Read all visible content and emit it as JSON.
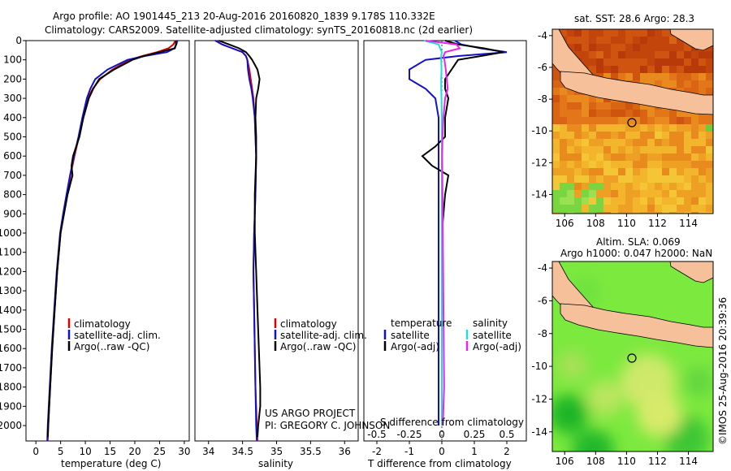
{
  "header": {
    "line1": "Argo profile: AO 1901445_213 20-Aug-2016 20160820_1839 9.178S 110.332E",
    "line2": "Climatology: CARS2009. Satellite-adjusted climatology: synTS_20160818.nc (2d earlier)"
  },
  "footer": {
    "project": "US ARGO PROJECT",
    "pi": "PI: GREGORY C. JOHNSON",
    "copyright": "©IMOS 25-Aug-2016 20:39:36"
  },
  "colors": {
    "climatology": "#dd0000",
    "satellite": "#1111cc",
    "argo": "#000000",
    "sat_t_diff": "#22dddd",
    "argo_s_diff": "#ee22ee",
    "land": "#f5c09a"
  },
  "chart_data": [
    {
      "type": "line",
      "panel": "temperature",
      "xlabel": "temperature (deg C)",
      "ylabel": "",
      "xlim": [
        -2,
        31
      ],
      "ylim": [
        2080,
        0
      ],
      "xticks": [
        0,
        5,
        10,
        15,
        20,
        25,
        30
      ],
      "yticks": [
        0,
        100,
        200,
        300,
        400,
        500,
        600,
        700,
        800,
        900,
        1000,
        1100,
        1200,
        1300,
        1400,
        1500,
        1600,
        1700,
        1800,
        1900,
        2000
      ],
      "legend": [
        "climatology",
        "satellite-adj. clim.",
        "Argo(..raw -QC)"
      ],
      "series": [
        {
          "name": "climatology",
          "color": "#dd0000",
          "depth": [
            0,
            20,
            40,
            60,
            80,
            100,
            150,
            200,
            250,
            300,
            400,
            500,
            600,
            700,
            800,
            900,
            1000,
            1200,
            1400,
            1600,
            1800,
            2000,
            2080
          ],
          "values": [
            28.2,
            27.8,
            26.8,
            24.5,
            21.5,
            19.0,
            15.5,
            13.0,
            11.5,
            10.5,
            9.5,
            8.7,
            7.8,
            7.0,
            6.3,
            5.6,
            5.0,
            4.3,
            3.8,
            3.3,
            2.9,
            2.5,
            2.4
          ]
        },
        {
          "name": "satellite-adj. clim.",
          "color": "#1111cc",
          "depth": [
            0,
            20,
            40,
            60,
            80,
            100,
            150,
            200,
            250,
            300,
            400,
            500,
            600,
            700,
            800,
            900,
            1000,
            1200,
            1400,
            1600,
            1800,
            2000,
            2080
          ],
          "values": [
            28.6,
            28.4,
            28.0,
            26.5,
            22.0,
            18.5,
            14.5,
            12.0,
            11.0,
            10.3,
            9.4,
            8.6,
            7.7,
            6.9,
            6.2,
            5.5,
            4.9,
            4.2,
            3.7,
            3.2,
            2.8,
            2.4,
            2.3
          ]
        },
        {
          "name": "Argo(..raw -QC)",
          "color": "#000000",
          "depth": [
            0,
            20,
            40,
            60,
            80,
            100,
            150,
            200,
            250,
            300,
            400,
            500,
            600,
            650,
            700,
            800,
            900,
            1000,
            1200,
            1400,
            1600,
            1800,
            2000,
            2060
          ],
          "values": [
            28.3,
            28.3,
            28.1,
            25.0,
            21.8,
            19.5,
            15.8,
            12.8,
            11.6,
            10.7,
            9.6,
            8.8,
            7.5,
            7.2,
            7.4,
            6.4,
            5.7,
            5.0,
            4.3,
            3.8,
            3.3,
            2.9,
            2.5,
            2.4
          ]
        }
      ]
    },
    {
      "type": "line",
      "panel": "salinity",
      "xlabel": "salinity",
      "xlim": [
        33.8,
        36.2
      ],
      "ylim": [
        2080,
        0
      ],
      "xticks": [
        34,
        34.5,
        35,
        35.5,
        36
      ],
      "legend": [
        "climatology",
        "satellite-adj. clim.",
        "Argo(..raw -QC)"
      ],
      "series": [
        {
          "name": "climatology",
          "color": "#dd0000",
          "depth": [
            0,
            20,
            40,
            60,
            80,
            100,
            150,
            200,
            250,
            300,
            400,
            500,
            600,
            800,
            1000,
            1200,
            1400,
            1600,
            1800,
            2000,
            2080
          ],
          "values": [
            34.1,
            34.2,
            34.35,
            34.5,
            34.55,
            34.57,
            34.6,
            34.62,
            34.64,
            34.66,
            34.68,
            34.69,
            34.7,
            34.69,
            34.67,
            34.66,
            34.67,
            34.68,
            34.69,
            34.71,
            34.72
          ]
        },
        {
          "name": "satellite-adj. clim.",
          "color": "#1111cc",
          "depth": [
            0,
            20,
            40,
            60,
            80,
            100,
            150,
            200,
            250,
            300,
            400,
            500,
            600,
            800,
            1000,
            1200,
            1400,
            1600,
            1800,
            2000,
            2080
          ],
          "values": [
            34.1,
            34.2,
            34.35,
            34.5,
            34.55,
            34.57,
            34.58,
            34.6,
            34.63,
            34.65,
            34.68,
            34.69,
            34.7,
            34.69,
            34.67,
            34.66,
            34.67,
            34.68,
            34.69,
            34.7,
            34.71
          ]
        },
        {
          "name": "Argo(..raw -QC)",
          "color": "#000000",
          "depth": [
            0,
            20,
            40,
            60,
            80,
            100,
            150,
            200,
            250,
            300,
            400,
            500,
            600,
            800,
            1000,
            1200,
            1400,
            1600,
            1800,
            1900,
            2000,
            2060
          ],
          "values": [
            34.15,
            34.3,
            34.45,
            34.55,
            34.6,
            34.64,
            34.72,
            34.75,
            34.73,
            34.7,
            34.69,
            34.7,
            34.7,
            34.68,
            34.68,
            34.7,
            34.72,
            34.74,
            34.76,
            34.76,
            34.73,
            34.72
          ]
        }
      ]
    },
    {
      "type": "line",
      "panel": "differences",
      "xlabel_top": "S difference from climatology",
      "xlabel_bottom": "T difference from climatology",
      "xlim_T": [
        -2.4,
        2.6
      ],
      "xticks_T": [
        -2,
        -1,
        0,
        1,
        2
      ],
      "xticks_S": [
        -0.5,
        -0.25,
        0,
        0.25,
        0.5
      ],
      "ylim": [
        2080,
        0
      ],
      "legend_temperature": {
        "title": "temperature",
        "items": [
          "satellite",
          "Argo(-adj)"
        ]
      },
      "legend_salinity": {
        "title": "salinity",
        "items": [
          "satellite",
          "Argo(-adj)"
        ]
      },
      "series": [
        {
          "name": "temperature satellite",
          "color": "#1111cc",
          "depth": [
            0,
            20,
            40,
            60,
            80,
            100,
            150,
            200,
            250,
            300,
            400,
            500,
            600,
            800,
            1000,
            1200,
            1400,
            1600,
            1800,
            2000
          ],
          "values": [
            0.4,
            0.6,
            1.2,
            2.0,
            0.5,
            -0.5,
            -1.0,
            -1.0,
            -0.5,
            -0.2,
            -0.1,
            -0.1,
            -0.1,
            -0.1,
            -0.1,
            -0.1,
            -0.1,
            -0.1,
            -0.1,
            -0.1
          ]
        },
        {
          "name": "temperature Argo(-adj)",
          "color": "#000000",
          "depth": [
            0,
            20,
            40,
            60,
            80,
            100,
            150,
            200,
            250,
            300,
            400,
            500,
            550,
            600,
            650,
            700,
            800,
            1000,
            1200,
            1400,
            1600,
            1800,
            2000
          ],
          "values": [
            0.1,
            0.5,
            1.3,
            1.9,
            1.2,
            0.5,
            0.3,
            0.1,
            0.1,
            0.2,
            0.1,
            0.1,
            -0.2,
            -0.6,
            -0.3,
            0.2,
            0.1,
            0.0,
            0.0,
            0.0,
            0.0,
            0.0,
            0.0
          ]
        },
        {
          "name": "salinity satellite",
          "color": "#22dddd",
          "depth": [
            0,
            20,
            40,
            60,
            80,
            100,
            150,
            200,
            250,
            300,
            400,
            500,
            600,
            800,
            1000,
            1200,
            1400,
            1600,
            1800,
            2000
          ],
          "values": [
            -0.55,
            -0.1,
            -0.05,
            0.0,
            -0.02,
            -0.02,
            -0.01,
            -0.02,
            -0.02,
            -0.01,
            0.0,
            0.0,
            0.0,
            0.0,
            0.0,
            0.0,
            0.0,
            0.0,
            0.0,
            0.0
          ]
        },
        {
          "name": "salinity Argo(-adj)",
          "color": "#ee22ee",
          "depth": [
            0,
            20,
            40,
            60,
            80,
            100,
            150,
            200,
            250,
            300,
            400,
            500,
            600,
            800,
            1000,
            1200,
            1400,
            1600,
            1800,
            2000
          ],
          "values": [
            -0.5,
            0.45,
            0.55,
            0.1,
            0.05,
            0.08,
            0.12,
            0.15,
            0.18,
            0.1,
            0.05,
            0.02,
            0.01,
            0.02,
            0.03,
            0.04,
            0.05,
            0.06,
            0.07,
            0.03
          ]
        }
      ]
    },
    {
      "type": "heatmap",
      "panel": "sst_map",
      "title": "sat. SST: 28.6 Argo: 28.3",
      "xlim": [
        105.2,
        115.6
      ],
      "ylim": [
        -15.2,
        -3.6
      ],
      "xticks": [
        106,
        108,
        110,
        112,
        114
      ],
      "yticks": [
        -4,
        -6,
        -8,
        -10,
        -12,
        -14
      ],
      "argo_position": {
        "lon": 110.332,
        "lat": -9.178
      }
    },
    {
      "type": "heatmap",
      "panel": "sla_map",
      "title_line1": "Altim. SLA: 0.069",
      "title_line2": "Argo h1000: 0.047 h2000: NaN",
      "xlim": [
        105.2,
        115.6
      ],
      "ylim": [
        -15.2,
        -3.6
      ],
      "xticks": [
        106,
        108,
        110,
        112,
        114
      ],
      "yticks": [
        -4,
        -6,
        -8,
        -10,
        -12,
        -14
      ],
      "argo_position": {
        "lon": 110.332,
        "lat": -9.178
      }
    }
  ]
}
